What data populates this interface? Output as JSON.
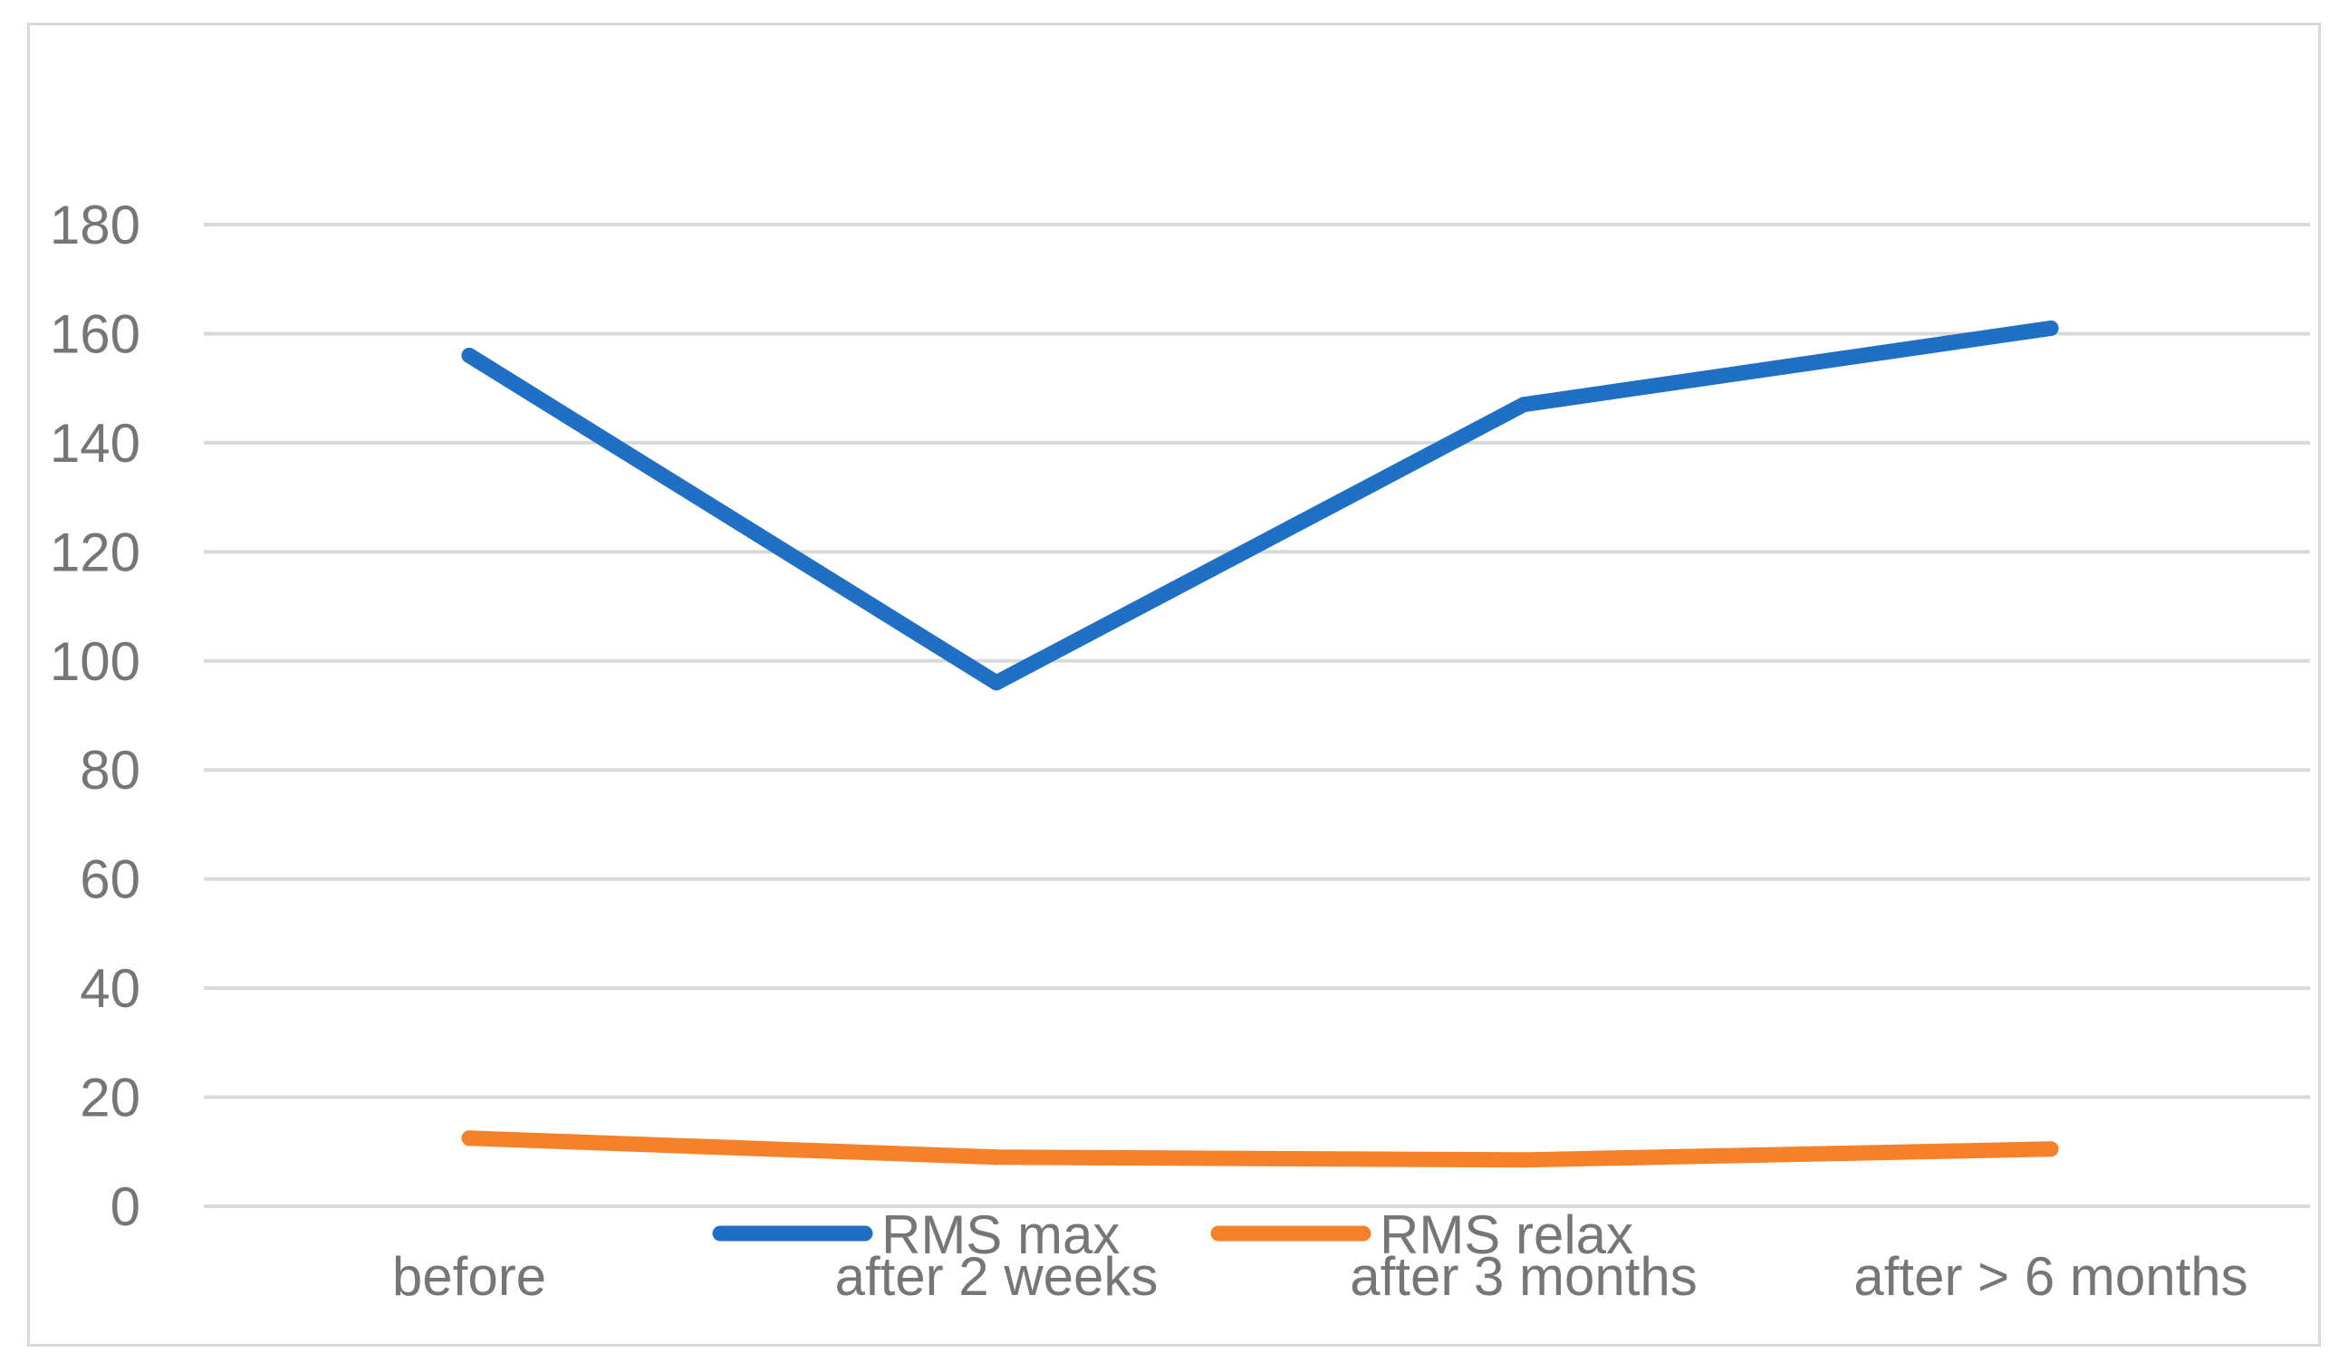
{
  "chart_data": {
    "type": "line",
    "categories": [
      "before",
      "after 2 weeks",
      "after 3 months",
      "after > 6 months"
    ],
    "series": [
      {
        "name": "RMS max",
        "values": [
          156,
          96,
          147,
          161
        ],
        "color": "#1f6fc5"
      },
      {
        "name": "RMS relax",
        "values": [
          12.5,
          9,
          8.5,
          10.5
        ],
        "color": "#f5822a"
      }
    ],
    "ylim": [
      0,
      180
    ],
    "yticks": [
      0,
      20,
      40,
      60,
      80,
      100,
      120,
      140,
      160,
      180
    ],
    "grid": true,
    "legend_position": "bottom",
    "title": "",
    "xlabel": "",
    "ylabel": ""
  }
}
